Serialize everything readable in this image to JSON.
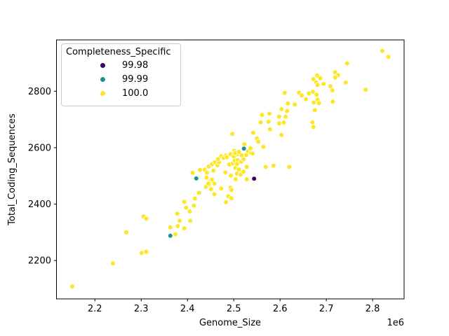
{
  "chart_data": {
    "type": "scatter",
    "xlabel": "Genome_Size",
    "ylabel": "Total_Coding_Sequences",
    "x_offset_label": "1e6",
    "xlim": [
      2117000,
      2868000
    ],
    "ylim": [
      2064,
      2982
    ],
    "grid": false,
    "xticks": {
      "values": [
        2200000,
        2300000,
        2400000,
        2500000,
        2600000,
        2700000,
        2800000
      ],
      "labels": [
        "2.2",
        "2.3",
        "2.4",
        "2.5",
        "2.6",
        "2.7",
        "2.8"
      ]
    },
    "yticks": {
      "values": [
        2200,
        2400,
        2600,
        2800
      ],
      "labels": [
        "2200",
        "2400",
        "2600",
        "2800"
      ]
    },
    "legend": {
      "title": "Completeness_Specific",
      "position": "upper-left"
    },
    "marker": {
      "radius": 3.4,
      "edge_color": "#ffffff"
    },
    "series": [
      {
        "name": "99.98",
        "color": "#440154",
        "points": [
          [
            2544000,
            2490
          ]
        ]
      },
      {
        "name": "99.99",
        "color": "#21918c",
        "points": [
          [
            2363000,
            2288
          ],
          [
            2419000,
            2491
          ],
          [
            2522000,
            2597
          ]
        ]
      },
      {
        "name": "100.0",
        "color": "#fde725",
        "points": [
          [
            2151000,
            2108
          ],
          [
            2239000,
            2190
          ],
          [
            2268000,
            2300
          ],
          [
            2301000,
            2227
          ],
          [
            2311000,
            2231
          ],
          [
            2305000,
            2356
          ],
          [
            2311000,
            2348
          ],
          [
            2363000,
            2318
          ],
          [
            2374000,
            2293
          ],
          [
            2378000,
            2366
          ],
          [
            2383000,
            2341
          ],
          [
            2379000,
            2322
          ],
          [
            2393000,
            2314
          ],
          [
            2405000,
            2374
          ],
          [
            2406000,
            2341
          ],
          [
            2393000,
            2408
          ],
          [
            2397000,
            2387
          ],
          [
            2414000,
            2395
          ],
          [
            2416000,
            2420
          ],
          [
            2425000,
            2440
          ],
          [
            2440000,
            2461
          ],
          [
            2447000,
            2469
          ],
          [
            2451000,
            2453
          ],
          [
            2458000,
            2435
          ],
          [
            2473000,
            2455
          ],
          [
            2493000,
            2458
          ],
          [
            2488000,
            2428
          ],
          [
            2495000,
            2450
          ],
          [
            2495000,
            2421
          ],
          [
            2483000,
            2407
          ],
          [
            2427000,
            2521
          ],
          [
            2441000,
            2494
          ],
          [
            2450000,
            2483
          ],
          [
            2445000,
            2473
          ],
          [
            2458000,
            2473
          ],
          [
            2453000,
            2487
          ],
          [
            2411000,
            2511
          ],
          [
            2437000,
            2522
          ],
          [
            2442000,
            2511
          ],
          [
            2456000,
            2519
          ],
          [
            2446000,
            2533
          ],
          [
            2482000,
            2512
          ],
          [
            2494000,
            2501
          ],
          [
            2503000,
            2526
          ],
          [
            2510000,
            2519
          ],
          [
            2507000,
            2508
          ],
          [
            2515000,
            2505
          ],
          [
            2504000,
            2488
          ],
          [
            2528000,
            2488
          ],
          [
            2504000,
            2529
          ],
          [
            2511000,
            2523
          ],
          [
            2521000,
            2515
          ],
          [
            2528000,
            2532
          ],
          [
            2453000,
            2541
          ],
          [
            2459000,
            2548
          ],
          [
            2465000,
            2538
          ],
          [
            2468000,
            2548
          ],
          [
            2466000,
            2559
          ],
          [
            2473000,
            2570
          ],
          [
            2478000,
            2564
          ],
          [
            2483000,
            2572
          ],
          [
            2485000,
            2566
          ],
          [
            2490000,
            2540
          ],
          [
            2493000,
            2577
          ],
          [
            2498000,
            2544
          ],
          [
            2500000,
            2569
          ],
          [
            2501000,
            2589
          ],
          [
            2502000,
            2554
          ],
          [
            2508000,
            2556
          ],
          [
            2507000,
            2542
          ],
          [
            2516000,
            2550
          ],
          [
            2521000,
            2559
          ],
          [
            2507000,
            2577
          ],
          [
            2503000,
            2581
          ],
          [
            2511000,
            2585
          ],
          [
            2517000,
            2573
          ],
          [
            2527000,
            2574
          ],
          [
            2531000,
            2587
          ],
          [
            2537000,
            2581
          ],
          [
            2541000,
            2579
          ],
          [
            2536000,
            2598
          ],
          [
            2523000,
            2612
          ],
          [
            2497000,
            2649
          ],
          [
            2542000,
            2653
          ],
          [
            2550000,
            2633
          ],
          [
            2553000,
            2621
          ],
          [
            2564000,
            2603
          ],
          [
            2569000,
            2532
          ],
          [
            2586000,
            2536
          ],
          [
            2620000,
            2532
          ],
          [
            2578000,
            2665
          ],
          [
            2603000,
            2645
          ],
          [
            2558000,
            2690
          ],
          [
            2561000,
            2716
          ],
          [
            2575000,
            2692
          ],
          [
            2577000,
            2721
          ],
          [
            2598000,
            2686
          ],
          [
            2598000,
            2710
          ],
          [
            2608000,
            2689
          ],
          [
            2612000,
            2710
          ],
          [
            2603000,
            2737
          ],
          [
            2615000,
            2730
          ],
          [
            2617000,
            2757
          ],
          [
            2632000,
            2753
          ],
          [
            2610000,
            2794
          ],
          [
            2641000,
            2795
          ],
          [
            2647000,
            2785
          ],
          [
            2656000,
            2772
          ],
          [
            2662000,
            2792
          ],
          [
            2671000,
            2798
          ],
          [
            2679000,
            2788
          ],
          [
            2673000,
            2760
          ],
          [
            2681000,
            2770
          ],
          [
            2684000,
            2758
          ],
          [
            2678000,
            2832
          ],
          [
            2681000,
            2822
          ],
          [
            2672000,
            2843
          ],
          [
            2680000,
            2856
          ],
          [
            2687000,
            2846
          ],
          [
            2694000,
            2826
          ],
          [
            2709000,
            2818
          ],
          [
            2713000,
            2803
          ],
          [
            2714000,
            2763
          ],
          [
            2719000,
            2867
          ],
          [
            2725000,
            2857
          ],
          [
            2719000,
            2849
          ],
          [
            2675000,
            2733
          ],
          [
            2670000,
            2690
          ],
          [
            2672000,
            2673
          ],
          [
            2742000,
            2831
          ],
          [
            2745000,
            2899
          ],
          [
            2785000,
            2805
          ],
          [
            2821000,
            2943
          ],
          [
            2834000,
            2922
          ]
        ]
      }
    ]
  }
}
